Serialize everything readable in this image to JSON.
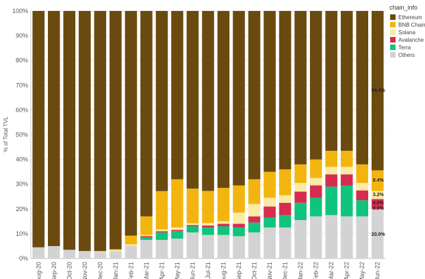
{
  "chart_data": {
    "type": "bar",
    "stacked": true,
    "ylabel": "% of Total TVL",
    "ylim": [
      0,
      100
    ],
    "y_ticks": [
      "0%",
      "10%",
      "20%",
      "30%",
      "40%",
      "50%",
      "60%",
      "70%",
      "80%",
      "90%",
      "100%"
    ],
    "grid": true,
    "legend": {
      "title": "chain_info",
      "placement": "right"
    },
    "categories": [
      "Aug-20",
      "Sep-20",
      "Oct-20",
      "Nov-20",
      "Dec-20",
      "Jan-21",
      "Feb-21",
      "Mar-21",
      "Apr-21",
      "May-21",
      "Jun-21",
      "Jul-21",
      "Aug-21",
      "Sep-21",
      "Oct-21",
      "Nov-21",
      "Dec-21",
      "Jan-22",
      "Feb-22",
      "Mar-22",
      "Apr-22",
      "May-22",
      "Jun-22"
    ],
    "series": [
      {
        "name": "Others",
        "color": "#d3d3d3",
        "values": [
          4.5,
          5,
          3.5,
          3,
          2.5,
          3,
          5.2,
          7.5,
          7.5,
          8,
          10.5,
          9.5,
          9.5,
          9,
          10.5,
          12.5,
          12.5,
          15.5,
          17,
          17.5,
          17,
          17,
          20
        ]
      },
      {
        "name": "Terra",
        "color": "#10c47d",
        "values": [
          0,
          0,
          0,
          0,
          0,
          0,
          0,
          1,
          3,
          3,
          2.5,
          3,
          3.5,
          3.5,
          4,
          4,
          5,
          7,
          7.5,
          11.5,
          12.5,
          6.5,
          0
        ]
      },
      {
        "name": "Avalanche",
        "color": "#d62d4e",
        "values": [
          0,
          0,
          0,
          0,
          0,
          0,
          0,
          0.5,
          0.5,
          0.5,
          0.5,
          0.8,
          1,
          1.5,
          2.5,
          4.5,
          5,
          4.5,
          5,
          5,
          4.5,
          4,
          4
        ]
      },
      {
        "name": "Solana",
        "color": "#faeaa5",
        "values": [
          0,
          0,
          0,
          0,
          0.3,
          0.5,
          0.5,
          0.5,
          0.7,
          1,
          0.7,
          1,
          1,
          4.5,
          5,
          3.5,
          3,
          3.5,
          3,
          3,
          3,
          3,
          3.2
        ]
      },
      {
        "name": "BNB Chain",
        "color": "#f2b510",
        "values": [
          0,
          0,
          0,
          0,
          0.2,
          0.2,
          3.5,
          7.5,
          15.5,
          19.5,
          14,
          13,
          13.5,
          11,
          10,
          10.5,
          10.5,
          7.5,
          7.5,
          6.5,
          6.5,
          7.5,
          8.4
        ]
      },
      {
        "name": "Ethereum",
        "color": "#6b4a10",
        "values": [
          95.5,
          95,
          96.5,
          97,
          97,
          96.3,
          90.8,
          83,
          72.8,
          68,
          71.8,
          72.7,
          71.5,
          70.5,
          68,
          65,
          64,
          62,
          60,
          56.5,
          56.5,
          62,
          64.4
        ]
      }
    ],
    "data_labels": [
      {
        "category": "Jun-22",
        "series": "Ethereum",
        "text": "64.4%"
      },
      {
        "category": "Jun-22",
        "series": "BNB Chain",
        "text": "8.4%"
      },
      {
        "category": "Jun-22",
        "series": "Solana",
        "text": "3.2%"
      },
      {
        "category": "Jun-22",
        "series": "Avalanche",
        "text": "4.0%"
      },
      {
        "category": "Jun-22",
        "series": "Terra",
        "text": "0.0%"
      },
      {
        "category": "Jun-22",
        "series": "Others",
        "text": "20.0%"
      }
    ],
    "legend_order": [
      "Ethereum",
      "BNB Chain",
      "Solana",
      "Avalanche",
      "Terra",
      "Others"
    ]
  }
}
